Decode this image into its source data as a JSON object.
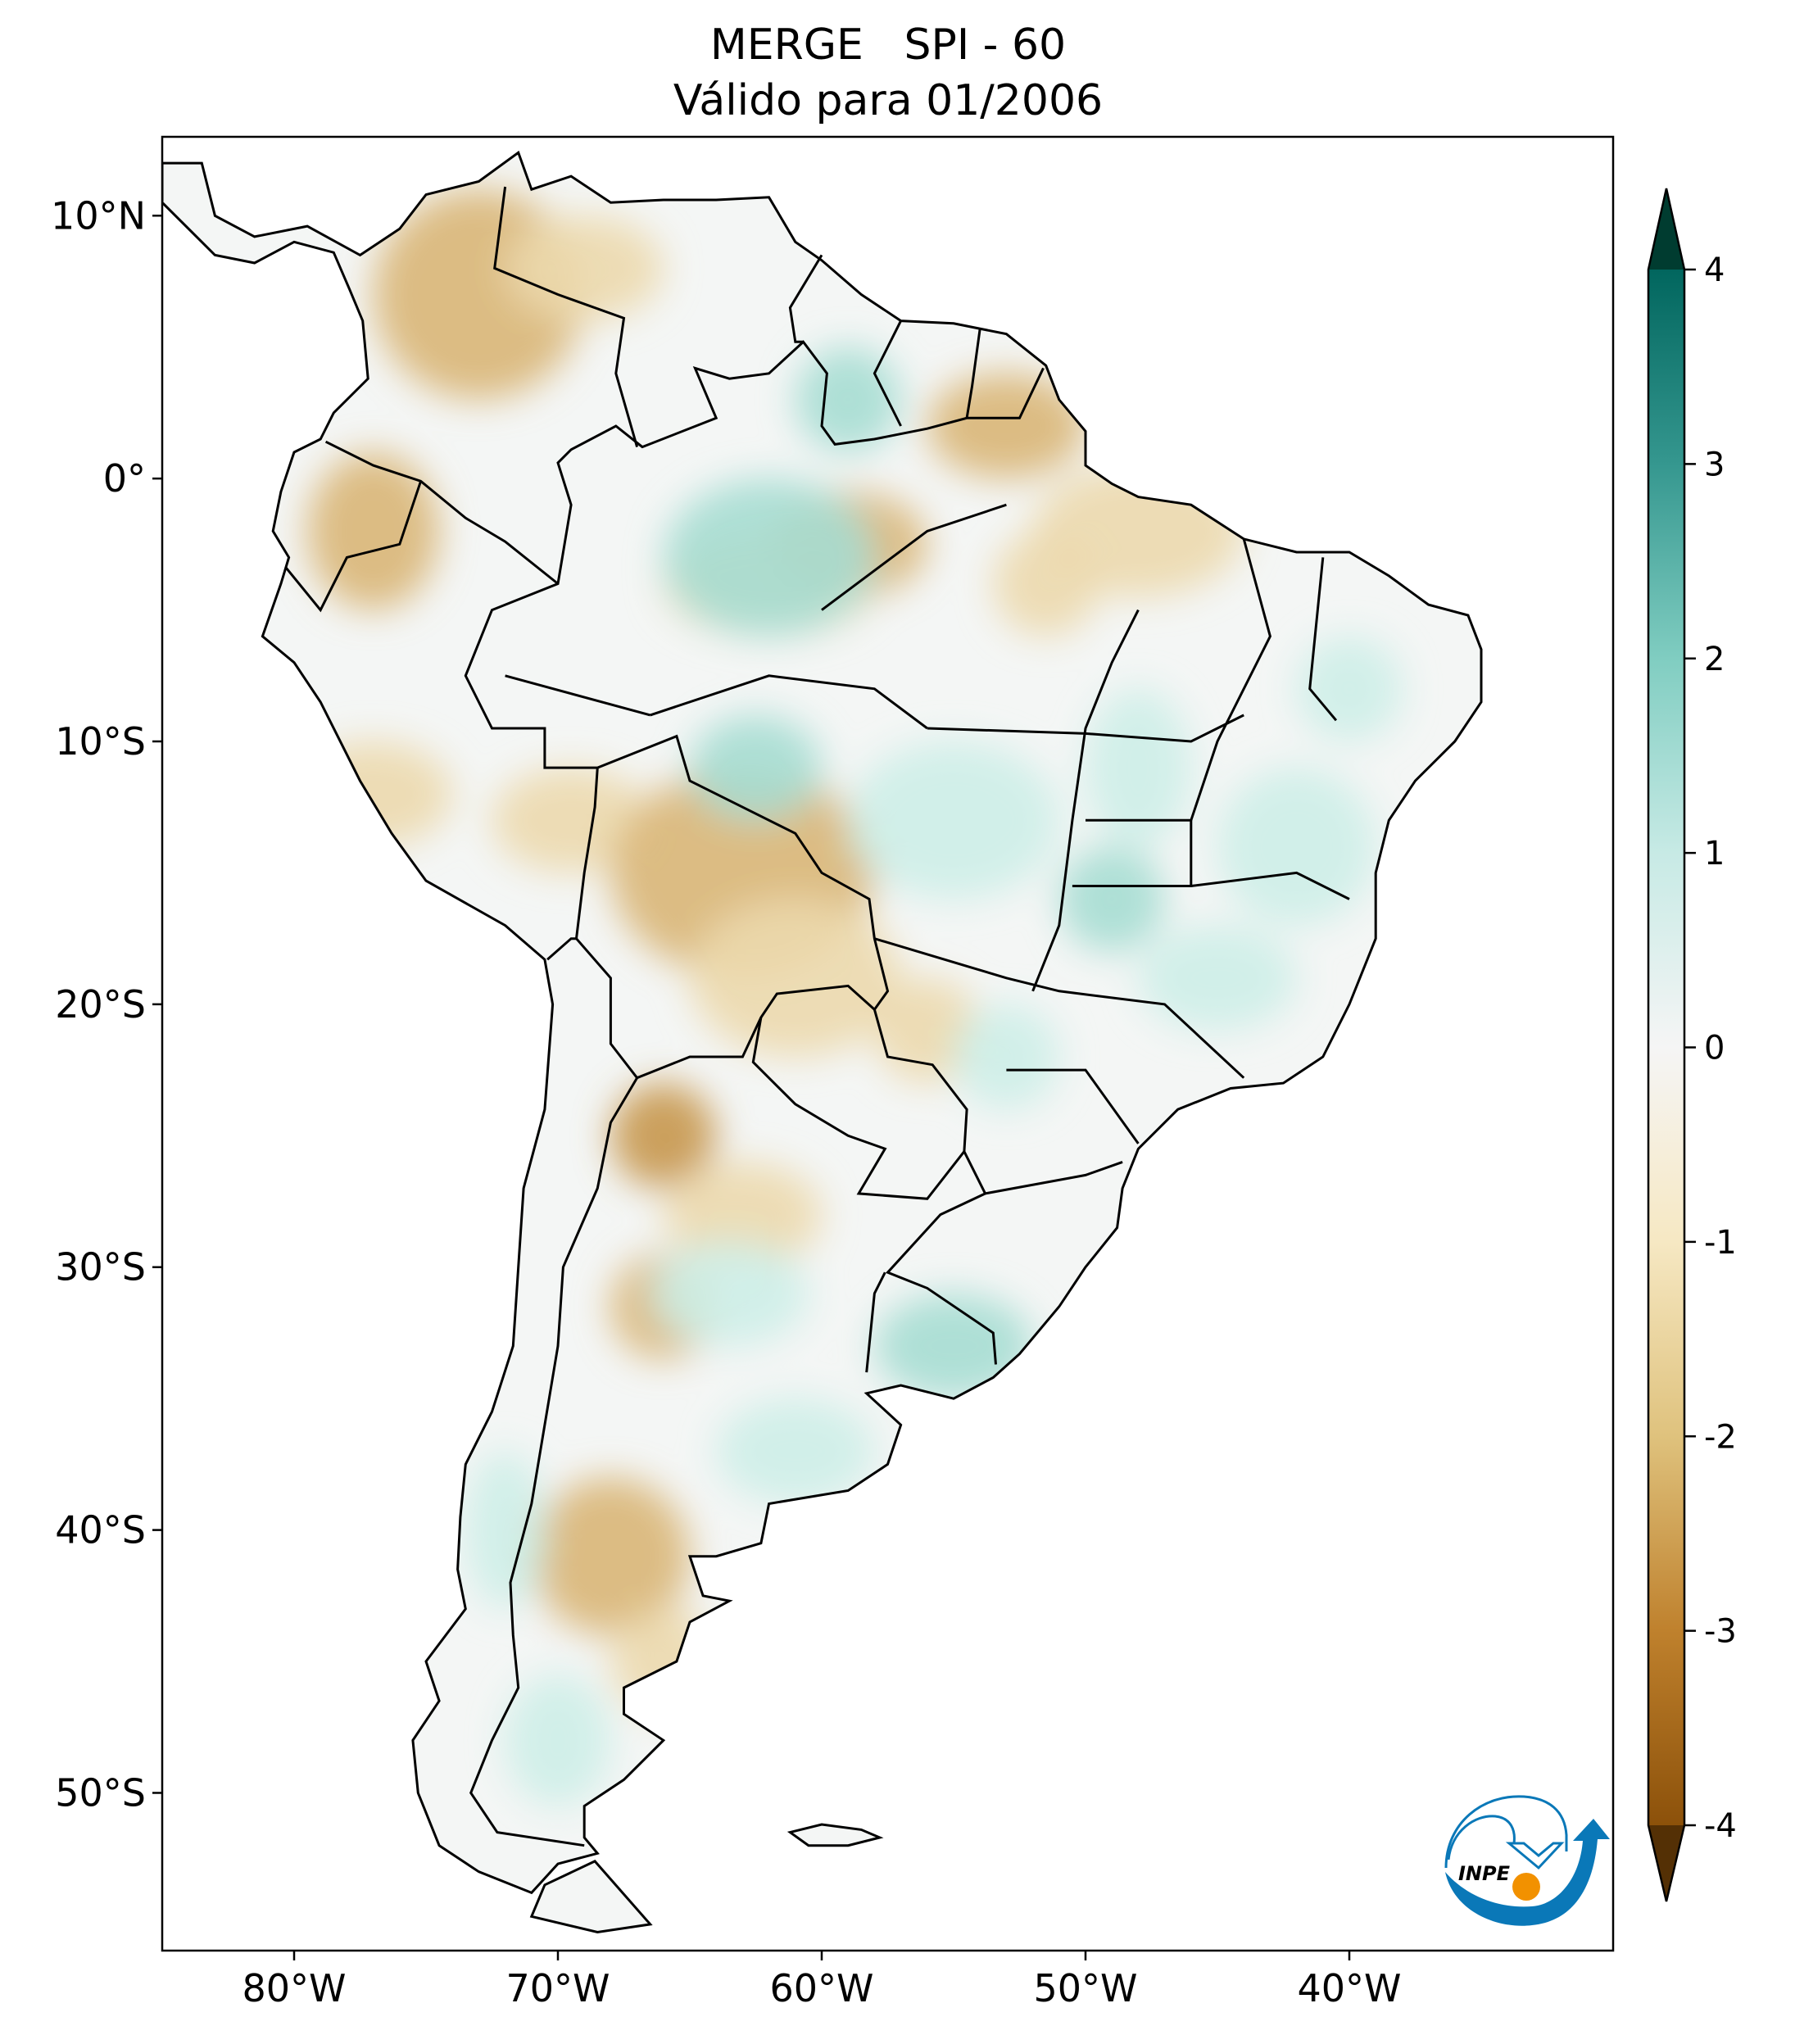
{
  "chart_data": {
    "type": "heatmap",
    "title": "MERGE   SPI - 60",
    "subtitle": "Válido para 01/2006",
    "xlabel": "",
    "ylabel": "",
    "x_ticks": [
      {
        "value": -80,
        "label": "80°W"
      },
      {
        "value": -70,
        "label": "70°W"
      },
      {
        "value": -60,
        "label": "60°W"
      },
      {
        "value": -50,
        "label": "50°W"
      },
      {
        "value": -40,
        "label": "40°W"
      }
    ],
    "y_ticks": [
      {
        "value": 10,
        "label": "10°N"
      },
      {
        "value": 0,
        "label": "0°"
      },
      {
        "value": -10,
        "label": "10°S"
      },
      {
        "value": -20,
        "label": "20°S"
      },
      {
        "value": -30,
        "label": "30°S"
      },
      {
        "value": -40,
        "label": "40°S"
      },
      {
        "value": -50,
        "label": "50°S"
      }
    ],
    "xlim": [
      -85,
      -30
    ],
    "ylim": [
      -56,
      13
    ],
    "grid": false,
    "colorbar": {
      "range": [
        -4,
        4
      ],
      "extend": "both",
      "colormap": "BrBG",
      "ticks": [
        {
          "value": 4,
          "label": "4"
        },
        {
          "value": 3,
          "label": "3"
        },
        {
          "value": 2,
          "label": "2"
        },
        {
          "value": 1,
          "label": "1"
        },
        {
          "value": 0,
          "label": "0"
        },
        {
          "value": -1,
          "label": "-1"
        },
        {
          "value": -2,
          "label": "-2"
        },
        {
          "value": -3,
          "label": "-3"
        },
        {
          "value": -4,
          "label": "-4"
        }
      ],
      "colors": [
        "#543005",
        "#8c510a",
        "#bf812d",
        "#dfc27d",
        "#f6e8c3",
        "#f5f5f5",
        "#c7eae5",
        "#80cdc1",
        "#35978f",
        "#01665e",
        "#003c30"
      ]
    }
  },
  "logo": {
    "text": "INPE",
    "colors": {
      "blue": "#0a78b8",
      "orange": "#f29100"
    }
  }
}
